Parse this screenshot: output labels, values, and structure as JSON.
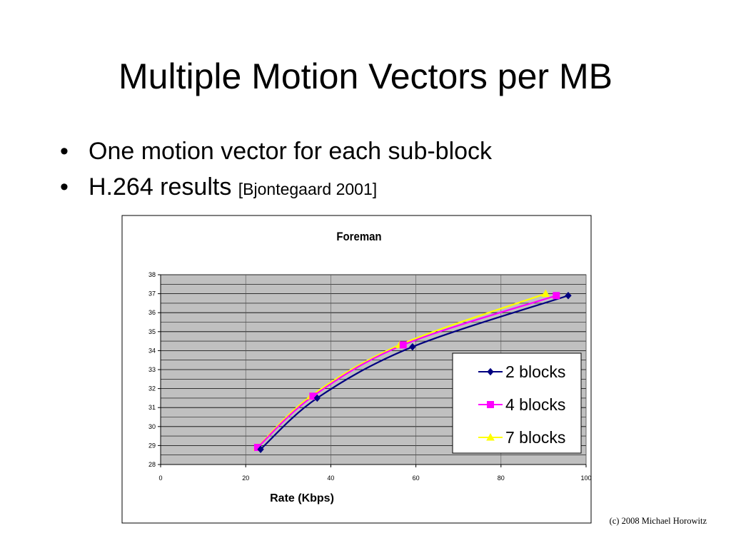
{
  "slide": {
    "title": "Multiple Motion Vectors per MB",
    "bullets": [
      {
        "text": "One motion vector for each sub-block",
        "ref": ""
      },
      {
        "text": "H.264 results",
        "ref": "[Bjontegaard 2001]"
      }
    ],
    "bullet_symbol": "•",
    "footer": "(c) 2008 Michael Horowitz"
  },
  "chart_data": {
    "type": "line",
    "title": "Foreman",
    "xlabel": "Rate (Kbps)",
    "ylabel": "",
    "xlim": [
      0,
      100
    ],
    "ylim": [
      28,
      38
    ],
    "x_ticks": [
      0,
      20,
      40,
      60,
      80,
      100
    ],
    "y_ticks": [
      28,
      29,
      30,
      31,
      32,
      33,
      34,
      35,
      36,
      37,
      38
    ],
    "grid": true,
    "legend_position": "right",
    "plot_background": "#c0c0c0",
    "series": [
      {
        "name": "2 blocks",
        "color": "#000080",
        "marker": "diamond",
        "x": [
          23.5,
          36.8,
          59.2,
          95.8
        ],
        "y": [
          28.8,
          31.5,
          34.2,
          36.9
        ]
      },
      {
        "name": "4 blocks",
        "color": "#ff00ff",
        "marker": "square",
        "x": [
          22.8,
          35.8,
          57.0,
          93.0
        ],
        "y": [
          28.9,
          31.6,
          34.3,
          36.9
        ]
      },
      {
        "name": "7 blocks",
        "color": "#ffff00",
        "marker": "triangle",
        "x": [
          22.7,
          35.3,
          56.2,
          90.5
        ],
        "y": [
          28.9,
          31.6,
          34.3,
          37.0
        ]
      }
    ]
  }
}
